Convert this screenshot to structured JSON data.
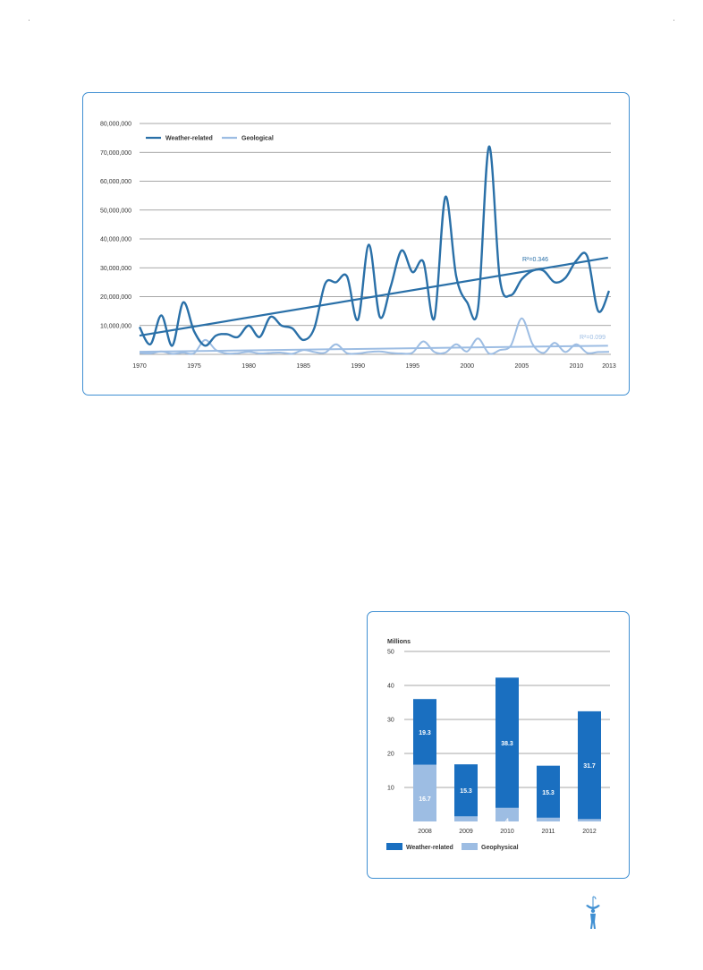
{
  "chart_data": [
    {
      "type": "line",
      "title": "",
      "xlabel": "",
      "ylabel": "",
      "xlim": [
        1970,
        2013
      ],
      "ylim": [
        0,
        80000000
      ],
      "grid": true,
      "legend_position": "top-left",
      "x_ticks": [
        "1970",
        "1975",
        "1980",
        "1985",
        "1990",
        "1995",
        "2000",
        "2005",
        "2010",
        "2013"
      ],
      "y_ticks": [
        "10,000,000",
        "20,000,000",
        "30,000,000",
        "40,000,000",
        "50,000,000",
        "60,000,000",
        "70,000,000",
        "80,000,000"
      ],
      "x": [
        1970,
        1971,
        1972,
        1973,
        1974,
        1975,
        1976,
        1977,
        1978,
        1979,
        1980,
        1981,
        1982,
        1983,
        1984,
        1985,
        1986,
        1987,
        1988,
        1989,
        1990,
        1991,
        1992,
        1993,
        1994,
        1995,
        1996,
        1997,
        1998,
        1999,
        2000,
        2001,
        2002,
        2003,
        2004,
        2005,
        2006,
        2007,
        2008,
        2009,
        2010,
        2011,
        2012,
        2013
      ],
      "series": [
        {
          "name": "Weather-related",
          "color": "#2a70a8",
          "values": [
            9500000,
            3500000,
            13500000,
            3000000,
            18000000,
            8000000,
            3000000,
            6500000,
            7000000,
            6000000,
            10000000,
            6000000,
            13000000,
            10000000,
            9000000,
            5000000,
            9000000,
            24500000,
            25000000,
            27000000,
            12000000,
            38000000,
            13000000,
            23500000,
            36000000,
            28500000,
            32000000,
            12500000,
            54500000,
            27000000,
            18000000,
            16000000,
            72000000,
            26000000,
            20500000,
            26000000,
            29000000,
            29000000,
            25000000,
            26500000,
            32500000,
            34000000,
            15000000,
            22000000
          ],
          "trend": {
            "label": "R²=0.346",
            "start": 6500000,
            "end": 33500000
          }
        },
        {
          "name": "Geological",
          "color": "#9dbde3",
          "values": [
            500000,
            300000,
            1000000,
            200000,
            600000,
            400000,
            5000000,
            1500000,
            300000,
            400000,
            900000,
            300000,
            500000,
            600000,
            200000,
            1500000,
            800000,
            600000,
            3500000,
            400000,
            300000,
            800000,
            1000000,
            500000,
            300000,
            600000,
            4500000,
            800000,
            600000,
            3500000,
            1000000,
            5500000,
            300000,
            1500000,
            3000000,
            12500000,
            3500000,
            500000,
            4000000,
            800000,
            3500000,
            500000,
            800000,
            900000
          ],
          "trend": {
            "label": "R²=0.099",
            "start": 900000,
            "end": 3000000
          }
        }
      ]
    },
    {
      "type": "bar",
      "stacked": true,
      "title": "",
      "xlabel": "",
      "ylabel": "Millions",
      "ylim": [
        0,
        50
      ],
      "grid": true,
      "legend_position": "bottom",
      "y_ticks": [
        "10",
        "20",
        "30",
        "40",
        "50"
      ],
      "categories": [
        "2008",
        "2009",
        "2010",
        "2011",
        "2012"
      ],
      "series": [
        {
          "name": "Geophysical",
          "color": "#9dbde3",
          "values": [
            16.7,
            1.5,
            4,
            1.1,
            0.7
          ],
          "labels": [
            "16.7",
            "1.5",
            "4",
            "1.1",
            "0.7"
          ]
        },
        {
          "name": "Weather-related",
          "color": "#1a6fc0",
          "values": [
            19.3,
            15.3,
            38.3,
            15.3,
            31.7
          ],
          "labels": [
            "19.3",
            "15.3",
            "38.3",
            "15.3",
            "31.7"
          ]
        }
      ]
    }
  ]
}
